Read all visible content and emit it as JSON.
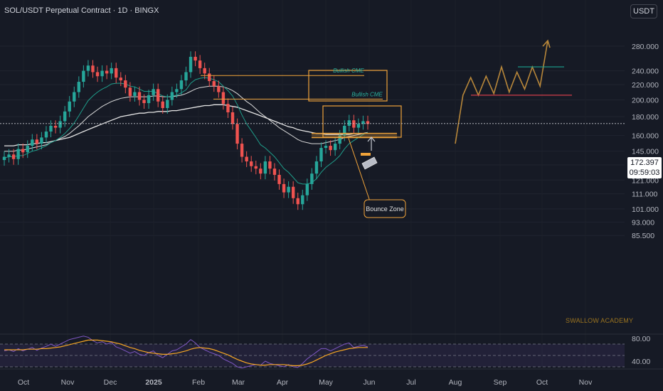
{
  "header": {
    "title": "SOL/USDT Perpetual Contract · 1D · BINGX",
    "currency_button": "USDT"
  },
  "last_price": {
    "price": "172.397",
    "countdown": "09:59:03"
  },
  "watermark": "SWALLOW ACADEMY",
  "colors": {
    "background": "#161a25",
    "candle_up": "#26a69a",
    "candle_down": "#ef5350",
    "annotation": "#f0a33a",
    "projection": "#b8873a",
    "resistance_line": "#d13d4a",
    "target_line": "#1ba38f",
    "rsi_line": "#7e57c2",
    "rsi_ma": "#f5a623"
  },
  "chart_data": [
    {
      "type": "candlestick",
      "title": "SOL/USDT Perpetual Contract · 1D · BINGX",
      "y_scale": "log",
      "y_ticks": [
        280,
        240,
        220,
        200,
        180,
        160,
        145,
        133,
        121,
        111,
        101,
        93,
        85.5
      ],
      "y_tick_labels": [
        "280.000",
        "240.000",
        "220.000",
        "200.000",
        "180.000",
        "160.000",
        "145.000",
        "133.000",
        "121.000",
        "111.000",
        "101.000",
        "93.000",
        "85.500"
      ],
      "x_tick_labels": [
        "Oct",
        "Nov",
        "Dec",
        "2025",
        "Feb",
        "Mar",
        "Apr",
        "May",
        "Jun",
        "Jul",
        "Aug",
        "Sep",
        "Oct",
        "Nov"
      ],
      "closes": [
        140,
        142,
        138,
        147,
        144,
        150,
        156,
        152,
        158,
        164,
        170,
        168,
        175,
        186,
        198,
        210,
        224,
        240,
        248,
        238,
        232,
        240,
        236,
        244,
        230,
        226,
        216,
        205,
        210,
        200,
        196,
        206,
        214,
        198,
        190,
        200,
        210,
        214,
        226,
        238,
        262,
        256,
        244,
        236,
        225,
        218,
        210,
        195,
        185,
        172,
        152,
        140,
        136,
        132,
        130,
        126,
        136,
        130,
        125,
        118,
        112,
        116,
        108,
        104,
        110,
        118,
        126,
        136,
        148,
        150,
        146,
        152,
        160,
        170,
        176,
        168,
        172,
        175,
        172
      ],
      "ema_fast": [
        139,
        140,
        140,
        141,
        141,
        143,
        145,
        146,
        148,
        150,
        153,
        155,
        158,
        162,
        167,
        173,
        181,
        190,
        199,
        205,
        210,
        214,
        217,
        221,
        222,
        222,
        221,
        218,
        217,
        214,
        211,
        211,
        211,
        208,
        205,
        204,
        205,
        206,
        209,
        213,
        222,
        227,
        229,
        230,
        229,
        227,
        224,
        218,
        212,
        205,
        194,
        182,
        172,
        165,
        158,
        151,
        148,
        144,
        140,
        135,
        130,
        127,
        123,
        119,
        118,
        118,
        119,
        122,
        127,
        131,
        134,
        137,
        141,
        147,
        152,
        155,
        158,
        161,
        163
      ],
      "ma_slow": [
        145,
        145,
        145,
        146,
        146,
        147,
        148,
        149,
        150,
        151,
        153,
        155,
        157,
        159,
        162,
        166,
        170,
        175,
        180,
        184,
        188,
        192,
        195,
        198,
        200,
        202,
        203,
        204,
        204,
        204,
        204,
        204,
        205,
        205,
        204,
        204,
        204,
        205,
        206,
        208,
        211,
        214,
        216,
        217,
        218,
        218,
        218,
        217,
        215,
        212,
        208,
        203,
        198,
        194,
        189,
        184,
        180,
        176,
        172,
        168,
        165,
        162,
        159,
        156,
        154,
        153,
        152,
        152,
        152,
        153,
        154,
        155,
        156,
        158,
        159,
        160,
        161,
        162,
        163
      ],
      "ma_long": [
        150,
        150,
        150,
        151,
        151,
        151,
        152,
        152,
        153,
        153,
        154,
        155,
        156,
        157,
        158,
        160,
        162,
        164,
        166,
        168,
        170,
        172,
        174,
        176,
        178,
        180,
        181,
        182,
        183,
        184,
        184,
        185,
        185,
        186,
        186,
        186,
        187,
        187,
        188,
        189,
        190,
        191,
        192,
        193,
        193,
        194,
        194,
        194,
        193,
        192,
        191,
        189,
        187,
        185,
        183,
        181,
        179,
        177,
        175,
        173,
        171,
        169,
        168,
        166,
        165,
        164,
        163,
        162,
        162,
        161,
        161,
        161,
        161,
        161,
        161,
        162,
        162,
        162,
        163
      ]
    },
    {
      "type": "line",
      "title": "RSI",
      "y_tick_labels": [
        "80.00",
        "40.00"
      ],
      "ylim": [
        30,
        85
      ],
      "bands": [
        70,
        50,
        30
      ],
      "rsi": [
        58,
        60,
        57,
        62,
        58,
        61,
        64,
        59,
        63,
        66,
        70,
        66,
        70,
        74,
        78,
        80,
        82,
        84,
        82,
        76,
        72,
        74,
        70,
        73,
        65,
        62,
        58,
        54,
        57,
        52,
        50,
        55,
        58,
        50,
        46,
        52,
        58,
        60,
        65,
        70,
        78,
        72,
        64,
        60,
        56,
        53,
        50,
        44,
        40,
        36,
        30,
        28,
        30,
        32,
        34,
        33,
        40,
        36,
        34,
        32,
        30,
        34,
        30,
        29,
        36,
        44,
        50,
        56,
        62,
        62,
        58,
        62,
        66,
        70,
        72,
        64,
        66,
        68,
        65
      ],
      "rsi_ma": [
        60,
        60,
        60,
        60,
        60,
        61,
        61,
        61,
        62,
        62,
        63,
        64,
        65,
        67,
        69,
        71,
        73,
        75,
        77,
        77,
        77,
        76,
        75,
        74,
        72,
        70,
        67,
        64,
        62,
        59,
        57,
        55,
        54,
        53,
        52,
        52,
        53,
        54,
        56,
        58,
        61,
        63,
        64,
        63,
        62,
        60,
        57,
        54,
        51,
        47,
        43,
        40,
        37,
        35,
        34,
        33,
        33,
        34,
        34,
        34,
        34,
        33,
        32,
        32,
        33,
        35,
        38,
        42,
        46,
        50,
        53,
        56,
        58,
        60,
        62,
        63,
        64,
        64,
        64
      ]
    }
  ],
  "annotations": {
    "bullish_cme_1": {
      "label": "Bullish CME",
      "level": 233
    },
    "bullish_cme_2": {
      "label": "Bullish CME",
      "level": 201
    },
    "bounce_zone": {
      "label": "Bounce Zone",
      "level": 160
    },
    "resistance_level": 206,
    "target_level": 246,
    "projection_path": [
      152,
      206,
      230,
      206,
      232,
      208,
      246,
      210,
      238,
      214,
      246,
      218,
      290
    ]
  }
}
